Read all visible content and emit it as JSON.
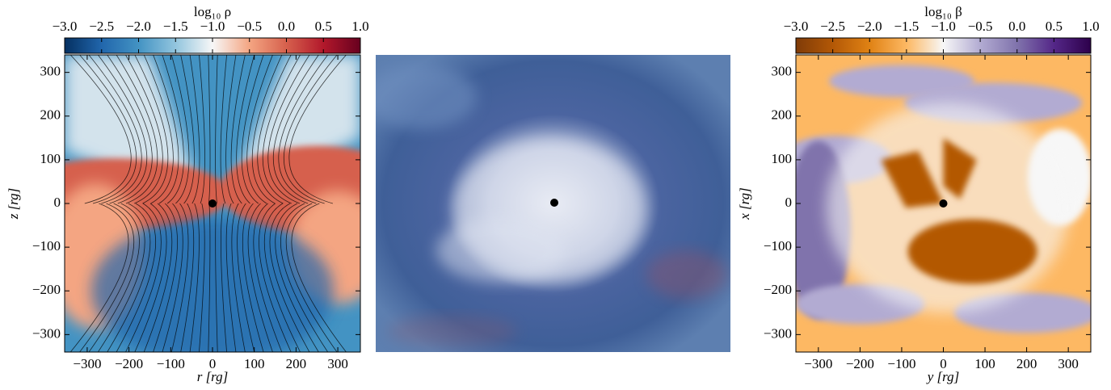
{
  "chart_data": [
    {
      "type": "heatmap",
      "colorbar_label": "log₁₀ ρ",
      "xlabel": "r [rg]",
      "ylabel": "z [rg]",
      "xlim": [
        -354,
        354
      ],
      "ylim": [
        -340,
        340
      ],
      "xticks": [
        {
          "value": -300,
          "label": "−300"
        },
        {
          "value": -200,
          "label": "−200"
        },
        {
          "value": -100,
          "label": "−100"
        },
        0,
        100,
        200,
        300
      ],
      "yticks": [
        {
          "value": -300,
          "label": "−300"
        },
        {
          "value": -200,
          "label": "−200"
        },
        {
          "value": -100,
          "label": "−100"
        },
        0,
        100,
        200,
        300
      ],
      "clim": [
        -3,
        1
      ],
      "cticks": [
        {
          "value": -3,
          "label": "−3.0"
        },
        {
          "value": -2.5,
          "label": "−2.5"
        },
        {
          "value": -2,
          "label": "−2.0"
        },
        {
          "value": -1.5,
          "label": "−1.5"
        },
        {
          "value": -1,
          "label": "−1.0"
        },
        {
          "value": -0.5,
          "label": "−0.5"
        },
        {
          "value": 0,
          "label": "0.0"
        },
        0.5,
        {
          "value": 1,
          "label": "1.0"
        }
      ],
      "colormap": [
        "#053061",
        "#2166ac",
        "#4393c3",
        "#92c5de",
        "#f7f7f7",
        "#f4a582",
        "#d6604d",
        "#b2182b",
        "#67001f"
      ]
    },
    {
      "type": "heatmap",
      "colorbar_label": "log₁₀ β",
      "xlabel": "y [rg]",
      "ylabel": "x [rg]",
      "xlim": [
        -354,
        354
      ],
      "ylim": [
        -340,
        340
      ],
      "xticks": [
        {
          "value": -300,
          "label": "−300"
        },
        {
          "value": -200,
          "label": "−200"
        },
        {
          "value": -100,
          "label": "−100"
        },
        0,
        100,
        200,
        300
      ],
      "yticks": [
        {
          "value": -300,
          "label": "−300"
        },
        {
          "value": -200,
          "label": "−200"
        },
        {
          "value": -100,
          "label": "−100"
        },
        0,
        100,
        200,
        300
      ],
      "clim": [
        -3,
        1
      ],
      "cticks": [
        {
          "value": -3,
          "label": "−3.0"
        },
        {
          "value": -2.5,
          "label": "−2.5"
        },
        {
          "value": -2,
          "label": "−2.0"
        },
        {
          "value": -1.5,
          "label": "−1.5"
        },
        {
          "value": -1,
          "label": "−1.0"
        },
        {
          "value": -0.5,
          "label": "−0.5"
        },
        {
          "value": 0,
          "label": "0.0"
        },
        0.5,
        {
          "value": 1,
          "label": "1.0"
        }
      ],
      "colormap": [
        "#7f3b08",
        "#b35806",
        "#e08214",
        "#fdb863",
        "#f7f7f7",
        "#b2abd2",
        "#8073ac",
        "#542788",
        "#2d004b"
      ]
    }
  ]
}
